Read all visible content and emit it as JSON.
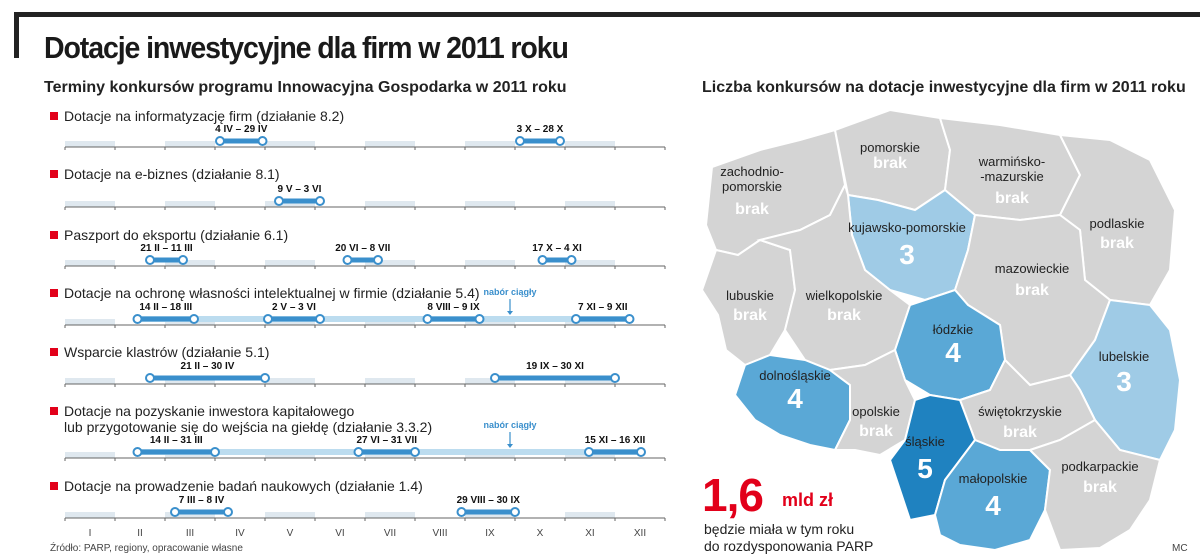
{
  "title": "Dotacje inwestycyjne dla firm w 2011 roku",
  "left_subtitle": "Terminy konkursów programu Innowacyjna Gospodarka w 2011 roku",
  "right_subtitle": "Liczba konkursów na dotacje inwestycyjne dla firm w 2011 roku",
  "months": [
    "I",
    "II",
    "III",
    "IV",
    "V",
    "VI",
    "VII",
    "VIII",
    "IX",
    "X",
    "XI",
    "XII"
  ],
  "programs": [
    {
      "label": "Dotacje na informatyzację firm (działanie 8.2)",
      "ranges": [
        {
          "label": "4 IV – 29 IV",
          "start": 3.1,
          "end": 3.95
        },
        {
          "label": "3 X – 28 X",
          "start": 9.1,
          "end": 9.9
        }
      ],
      "continuous": null
    },
    {
      "label": "Dotacje na e-biznes (działanie 8.1)",
      "ranges": [
        {
          "label": "9 V – 3 VI",
          "start": 4.28,
          "end": 5.1
        }
      ],
      "continuous": null
    },
    {
      "label": "Paszport do eksportu (działanie 6.1)",
      "ranges": [
        {
          "label": "21 II – 11 III",
          "start": 1.7,
          "end": 2.36
        },
        {
          "label": "20 VI – 8 VII",
          "start": 5.65,
          "end": 6.26
        },
        {
          "label": "17 X – 4 XI",
          "start": 9.55,
          "end": 10.13
        }
      ],
      "continuous": null
    },
    {
      "label": "Dotacje na ochronę własności intelektualnej w firmie (działanie 5.4)",
      "ranges": [
        {
          "label": "14 II – 18 III",
          "start": 1.45,
          "end": 2.58
        },
        {
          "label": "2 V – 3 VI",
          "start": 4.06,
          "end": 5.1
        },
        {
          "label": "8 VIII – 9 IX",
          "start": 7.25,
          "end": 8.29
        },
        {
          "label": "7 XI – 9 XII",
          "start": 10.22,
          "end": 11.29
        }
      ],
      "continuous": {
        "label": "nabór ciągły",
        "start": 1.45,
        "end": 11.29,
        "arrow": 8.9
      }
    },
    {
      "label": "Wsparcie klastrów (działanie 5.1)",
      "ranges": [
        {
          "label": "21 II – 30 IV",
          "start": 1.7,
          "end": 4.0
        },
        {
          "label": "19 IX – 30 XI",
          "start": 8.6,
          "end": 11.0
        }
      ],
      "continuous": null
    },
    {
      "label": "Dotacje na pozyskanie inwestora kapitałowego",
      "label2": "lub przygotowanie się do wejścia na giełdę (działanie 3.3.2)",
      "ranges": [
        {
          "label": "14 II – 31 III",
          "start": 1.45,
          "end": 3.0
        },
        {
          "label": "27 VI – 31 VII",
          "start": 5.87,
          "end": 7.0
        },
        {
          "label": "15 XI – 16 XII",
          "start": 10.48,
          "end": 11.52
        }
      ],
      "continuous": {
        "label": "nabór ciągły",
        "start": 1.45,
        "end": 11.52,
        "arrow": 8.9
      }
    },
    {
      "label": "Dotacje na prowadzenie badań naukowych (działanie 1.4)",
      "ranges": [
        {
          "label": "7 III – 8 IV",
          "start": 2.2,
          "end": 3.26
        },
        {
          "label": "29 VIII – 30 IX",
          "start": 7.93,
          "end": 9.0
        }
      ],
      "continuous": null
    }
  ],
  "source": "Źródło: PARP, regiony, opracowanie własne",
  "author": "MC",
  "regions": [
    {
      "name": "pomorskie",
      "value": "brak"
    },
    {
      "name": "zachodnio-pomorskie",
      "name_l1": "zachodnio-",
      "name_l2": "pomorskie",
      "value": "brak"
    },
    {
      "name": "warmińsko-mazurskie",
      "name_l1": "warmińsko-",
      "name_l2": "-mazurskie",
      "value": "brak"
    },
    {
      "name": "kujawsko-pomorskie",
      "value": "3"
    },
    {
      "name": "podlaskie",
      "value": "brak"
    },
    {
      "name": "mazowieckie",
      "value": "brak"
    },
    {
      "name": "lubuskie",
      "value": "brak"
    },
    {
      "name": "wielkopolskie",
      "value": "brak"
    },
    {
      "name": "łódzkie",
      "value": "4"
    },
    {
      "name": "lubelskie",
      "value": "3"
    },
    {
      "name": "dolnośląskie",
      "value": "4"
    },
    {
      "name": "opolskie",
      "value": "brak"
    },
    {
      "name": "świętokrzyskie",
      "value": "brak"
    },
    {
      "name": "śląskie",
      "value": "5"
    },
    {
      "name": "małopolskie",
      "value": "4"
    },
    {
      "name": "podkarpackie",
      "value": "brak"
    }
  ],
  "highlight": {
    "number": "1,6",
    "unit": "mld zł",
    "caption1": "będzie miała w tym roku",
    "caption2": "do rozdysponowania PARP"
  },
  "colors": {
    "accent": "#e2001a",
    "bar": "#3a8fcc",
    "bar_light": "#bcdcef",
    "map_gray": "#d4d4d4",
    "map_3": "#9fcbe6",
    "map_4": "#5aa8d6",
    "map_5": "#1f82c0"
  }
}
